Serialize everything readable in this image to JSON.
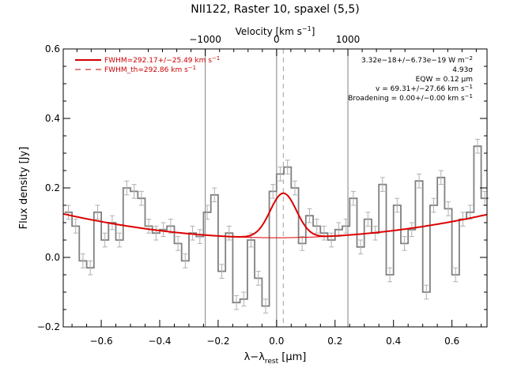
{
  "chart_data": {
    "type": "line",
    "title": "NII122, Raster 10, spaxel (5,5)",
    "xlabel": "λ−λ",
    "xlabel_sub": "rest",
    "xlabel_unit": " [μm]",
    "ylabel": "Flux density [Jy]",
    "top_axis_label": "Velocity [km s",
    "top_axis_label_sup": "−1",
    "top_axis_label_end": "]",
    "xlim": [
      -0.73,
      0.72
    ],
    "ylim": [
      -0.2,
      0.6
    ],
    "x_ticks": [
      -0.6,
      -0.4,
      -0.2,
      0.0,
      0.2,
      0.4,
      0.6
    ],
    "x_tick_labels": [
      "−0.6",
      "−0.4",
      "−0.2",
      "0.0",
      "0.2",
      "0.4",
      "0.6"
    ],
    "y_ticks": [
      -0.2,
      0.0,
      0.2,
      0.4,
      0.6
    ],
    "y_tick_labels": [
      "−0.2",
      "0.0",
      "0.2",
      "0.4",
      "0.6"
    ],
    "top_ticks_x": [
      -0.244,
      0.0,
      0.244
    ],
    "top_tick_labels": [
      "−1000",
      "0",
      "1000"
    ],
    "vertical_lines_x": [
      -0.244,
      0.0,
      0.244
    ],
    "center_line_x": 0.023,
    "spectrum": {
      "x": [
        -0.7125,
        -0.6875,
        -0.6625,
        -0.6375,
        -0.6125,
        -0.5875,
        -0.5625,
        -0.5375,
        -0.5125,
        -0.4875,
        -0.4625,
        -0.4375,
        -0.4125,
        -0.3875,
        -0.3625,
        -0.3375,
        -0.3125,
        -0.2875,
        -0.2625,
        -0.2375,
        -0.2125,
        -0.1875,
        -0.1625,
        -0.1375,
        -0.1125,
        -0.0875,
        -0.0625,
        -0.0375,
        -0.0125,
        0.0125,
        0.0375,
        0.0625,
        0.0875,
        0.1125,
        0.1375,
        0.1625,
        0.1875,
        0.2125,
        0.2375,
        0.2625,
        0.2875,
        0.3125,
        0.3375,
        0.3625,
        0.3875,
        0.4125,
        0.4375,
        0.4625,
        0.4875,
        0.5125,
        0.5375,
        0.5625,
        0.5875,
        0.6125,
        0.6375,
        0.6625,
        0.6875,
        0.7125
      ],
      "y": [
        0.13,
        0.09,
        -0.01,
        -0.03,
        0.13,
        0.05,
        0.1,
        0.05,
        0.2,
        0.19,
        0.17,
        0.09,
        0.07,
        0.08,
        0.09,
        0.04,
        -0.01,
        0.07,
        0.06,
        0.13,
        0.18,
        -0.04,
        0.07,
        -0.13,
        -0.12,
        0.05,
        -0.06,
        -0.14,
        0.19,
        0.24,
        0.26,
        0.2,
        0.04,
        0.12,
        0.09,
        0.07,
        0.05,
        0.08,
        0.09,
        0.17,
        0.03,
        0.11,
        0.07,
        0.21,
        -0.05,
        0.15,
        0.04,
        0.08,
        0.22,
        -0.1,
        0.15,
        0.23,
        0.14,
        -0.05,
        0.11,
        0.13,
        0.32,
        0.17
      ],
      "error": [
        0.02,
        0.02,
        0.02,
        0.02,
        0.02,
        0.02,
        0.02,
        0.02,
        0.02,
        0.02,
        0.02,
        0.02,
        0.02,
        0.02,
        0.02,
        0.02,
        0.02,
        0.02,
        0.02,
        0.02,
        0.02,
        0.02,
        0.02,
        0.02,
        0.02,
        0.02,
        0.02,
        0.02,
        0.02,
        0.02,
        0.02,
        0.02,
        0.02,
        0.02,
        0.02,
        0.02,
        0.02,
        0.02,
        0.02,
        0.02,
        0.02,
        0.02,
        0.02,
        0.02,
        0.02,
        0.02,
        0.02,
        0.02,
        0.02,
        0.02,
        0.02,
        0.02,
        0.02,
        0.02,
        0.02,
        0.02,
        0.02,
        0.02
      ],
      "color": "#808080"
    },
    "fit": {
      "baseline": {
        "c": 0.0566,
        "b": 0.0,
        "a": 0.129
      },
      "gaussian": {
        "amplitude": 0.128,
        "center": 0.023,
        "sigma": 0.045
      },
      "color": "#dd0000"
    },
    "legend": [
      {
        "label": "FWHM=292.17+/−25.49 km s",
        "sup": "−1",
        "style": "solid"
      },
      {
        "label": "FWHM_th=292.86 km s",
        "sup": "−1",
        "style": "dashed"
      }
    ],
    "legend_color": "#cc0000",
    "legend_position": "top-left",
    "annotations_position": "top-right",
    "annotations": {
      "flux": "3.32e−18+/−6.73e−19 W m",
      "flux_sup": "−2",
      "sigma": "4.93σ",
      "eqw": "EQW = 0.12 μm",
      "velocity": "v = 69.31+/−27.66 km s",
      "velocity_sup": "−1",
      "broadening": "Broadening = 0.00+/−0.00 km s",
      "broadening_sup": "−1"
    }
  }
}
